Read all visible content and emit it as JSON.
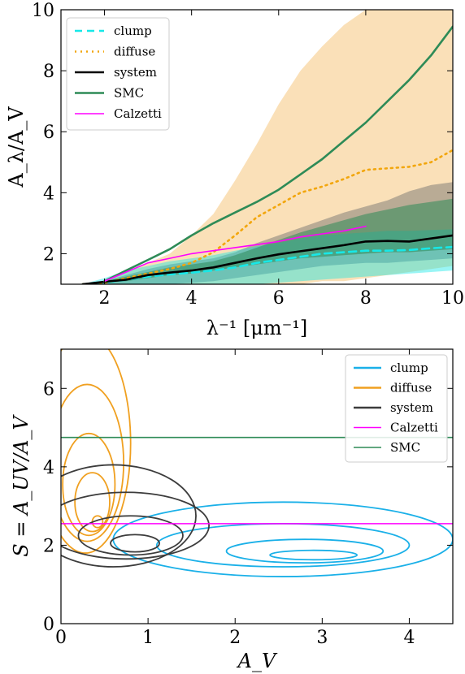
{
  "chart_data": [
    {
      "type": "line",
      "xlabel": "λ⁻¹ [μm⁻¹]",
      "ylabel": "A_λ/A_V",
      "xlim": [
        1,
        10
      ],
      "ylim": [
        1,
        10
      ],
      "xticks": [
        "2",
        "4",
        "6",
        "8",
        "10"
      ],
      "yticks": [
        "2",
        "4",
        "6",
        "8",
        "10"
      ],
      "legend_position": "upper-left",
      "legend": [
        "clump",
        "diffuse",
        "system",
        "SMC",
        "Calzetti"
      ],
      "x": [
        1.5,
        2.0,
        2.5,
        3.0,
        3.5,
        4.0,
        4.5,
        5.0,
        5.5,
        6.0,
        6.5,
        7.0,
        7.5,
        8.0,
        8.5,
        9.0,
        9.5,
        10.0
      ],
      "series": [
        {
          "name": "clump",
          "style": "dashed",
          "color": "#17e8e8",
          "values": [
            1.0,
            1.05,
            1.15,
            1.25,
            1.32,
            1.38,
            1.45,
            1.55,
            1.7,
            1.8,
            1.9,
            2.0,
            2.05,
            2.1,
            2.1,
            2.12,
            2.18,
            2.22
          ]
        },
        {
          "name": "diffuse",
          "style": "dotted",
          "color": "#f2a60c",
          "values": [
            1.0,
            1.05,
            1.2,
            1.35,
            1.5,
            1.7,
            2.05,
            2.6,
            3.2,
            3.6,
            4.0,
            4.2,
            4.45,
            4.75,
            4.8,
            4.85,
            5.0,
            5.4
          ]
        },
        {
          "name": "system",
          "style": "solid",
          "color": "#000000",
          "values": [
            1.0,
            1.08,
            1.15,
            1.3,
            1.38,
            1.45,
            1.55,
            1.7,
            1.85,
            1.98,
            2.08,
            2.18,
            2.28,
            2.4,
            2.42,
            2.4,
            2.5,
            2.6
          ]
        },
        {
          "name": "SMC",
          "style": "solid",
          "color": "#2e8b57",
          "values": [
            null,
            1.1,
            1.45,
            1.8,
            2.15,
            2.6,
            3.0,
            3.35,
            3.7,
            4.1,
            4.6,
            5.1,
            5.7,
            6.3,
            7.0,
            7.7,
            8.5,
            9.45
          ]
        },
        {
          "name": "Calzetti",
          "style": "solid",
          "color": "#ff00ff",
          "values": [
            null,
            1.1,
            1.4,
            1.7,
            1.85,
            2.0,
            2.1,
            2.2,
            2.3,
            2.4,
            2.55,
            2.65,
            2.75,
            2.9,
            null,
            null,
            null,
            null
          ]
        }
      ],
      "bands": [
        {
          "name": "diffuse",
          "color": "#f5c77e",
          "opacity": 0.55,
          "lower": [
            1.0,
            1.0,
            1.0,
            1.0,
            1.0,
            1.0,
            1.0,
            1.0,
            1.0,
            1.0,
            1.0,
            1.1,
            1.1,
            1.2,
            1.3,
            1.4,
            1.5,
            1.6
          ],
          "upper": [
            1.0,
            1.1,
            1.4,
            1.7,
            2.0,
            2.6,
            3.3,
            4.4,
            5.6,
            6.9,
            8.0,
            8.8,
            9.5,
            10.0,
            10.0,
            10.0,
            10.0,
            10.0
          ]
        },
        {
          "name": "system",
          "color": "#6b6b6b",
          "opacity": 0.45,
          "lower": [
            1.0,
            1.0,
            1.0,
            1.0,
            1.0,
            1.05,
            1.1,
            1.2,
            1.3,
            1.4,
            1.5,
            1.6,
            1.65,
            1.7,
            1.7,
            1.75,
            1.8,
            1.85
          ],
          "upper": [
            1.0,
            1.1,
            1.3,
            1.5,
            1.65,
            1.75,
            1.85,
            2.05,
            2.35,
            2.6,
            2.85,
            3.1,
            3.35,
            3.55,
            3.75,
            4.05,
            4.25,
            4.35
          ]
        },
        {
          "name": "clump",
          "color": "#00e6e6",
          "opacity": 0.4,
          "lower": [
            1.0,
            1.0,
            1.0,
            1.0,
            1.0,
            1.0,
            1.0,
            1.0,
            1.0,
            1.05,
            1.1,
            1.15,
            1.2,
            1.25,
            1.3,
            1.35,
            1.4,
            1.45
          ],
          "upper": [
            1.0,
            1.2,
            1.45,
            1.6,
            1.75,
            1.85,
            1.95,
            2.1,
            2.25,
            2.35,
            2.5,
            2.6,
            2.65,
            2.7,
            2.75,
            2.75,
            2.78,
            2.8
          ]
        },
        {
          "name": "SMC-clump overlap",
          "color": "#2e8b57",
          "opacity": 0.55,
          "lower": [
            1.0,
            1.05,
            1.1,
            1.2,
            1.3,
            1.35,
            1.45,
            1.55,
            1.65,
            1.75,
            1.85,
            1.9,
            1.95,
            2.0,
            2.05,
            2.05,
            2.1,
            2.15
          ],
          "upper": [
            1.0,
            1.1,
            1.25,
            1.4,
            1.55,
            1.65,
            1.75,
            1.95,
            2.2,
            2.45,
            2.7,
            2.9,
            3.1,
            3.3,
            3.45,
            3.6,
            3.7,
            3.8
          ]
        }
      ]
    },
    {
      "type": "scatter",
      "xlabel": "A_V",
      "ylabel": "S = A_UV/A_V",
      "xlim": [
        0,
        4.5
      ],
      "ylim": [
        0,
        7
      ],
      "xticks": [
        "0",
        "1",
        "2",
        "3",
        "4"
      ],
      "yticks": [
        "0",
        "2",
        "4",
        "6"
      ],
      "legend_position": "upper-right",
      "legend": [
        "clump",
        "diffuse",
        "system",
        "Calzetti",
        "SMC"
      ],
      "hlines": [
        {
          "name": "Calzetti",
          "y": 2.55,
          "color": "#ff00ff"
        },
        {
          "name": "SMC",
          "y": 4.75,
          "color": "#2e8b57"
        }
      ],
      "contours": [
        {
          "name": "clump",
          "color": "#1ab0e8",
          "levels": [
            {
              "cx": 2.9,
              "cy": 1.75,
              "rx": 0.5,
              "ry": 0.12
            },
            {
              "cx": 2.8,
              "cy": 1.85,
              "rx": 0.9,
              "ry": 0.3
            },
            {
              "cx": 2.55,
              "cy": 2.0,
              "rx": 1.45,
              "ry": 0.55
            },
            {
              "cx": 2.55,
              "cy": 2.15,
              "rx": 1.95,
              "ry": 0.95
            }
          ]
        },
        {
          "name": "diffuse",
          "color": "#f0a020",
          "levels": [
            {
              "cx": 0.42,
              "cy": 2.6,
              "rx": 0.06,
              "ry": 0.15
            },
            {
              "cx": 0.36,
              "cy": 3.1,
              "rx": 0.2,
              "ry": 0.75
            },
            {
              "cx": 0.32,
              "cy": 3.55,
              "rx": 0.3,
              "ry": 1.3
            },
            {
              "cx": 0.3,
              "cy": 4.1,
              "rx": 0.42,
              "ry": 2.0
            },
            {
              "cx": 0.28,
              "cy": 4.6,
              "rx": 0.52,
              "ry": 2.8
            }
          ]
        },
        {
          "name": "system",
          "color": "#3c3c3c",
          "levels": [
            {
              "cx": 0.85,
              "cy": 2.05,
              "rx": 0.28,
              "ry": 0.22
            },
            {
              "cx": 0.8,
              "cy": 2.25,
              "rx": 0.6,
              "ry": 0.5
            },
            {
              "cx": 0.75,
              "cy": 2.5,
              "rx": 0.95,
              "ry": 0.85
            },
            {
              "cx": 0.6,
              "cy": 2.75,
              "rx": 0.95,
              "ry": 1.3
            }
          ]
        }
      ]
    }
  ]
}
